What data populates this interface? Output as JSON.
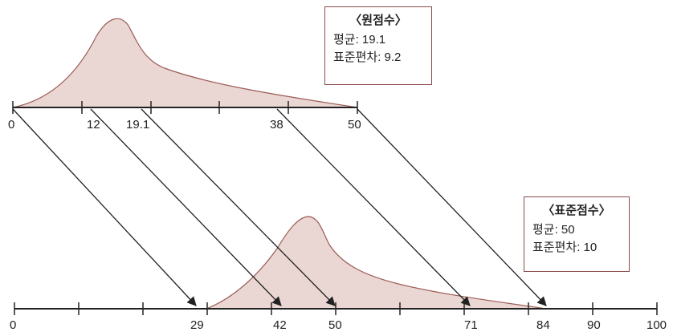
{
  "raw_box": {
    "title": "〈원점수〉",
    "mean_label": "평균: 19.1",
    "sd_label": "표준편차: 9.2"
  },
  "std_box": {
    "title": "〈표준점수〉",
    "mean_label": "평균: 50",
    "sd_label": "표준편차: 10"
  },
  "top_axis": {
    "labels": [
      "0",
      "12",
      "19.1",
      "38",
      "50"
    ]
  },
  "bottom_axis": {
    "labels": [
      "0",
      "29",
      "42",
      "50",
      "71",
      "84",
      "90",
      "100"
    ]
  },
  "colors": {
    "curve_fill": "#ead7d3",
    "curve_stroke": "#9c5a55",
    "axis": "#222222",
    "arrow": "#222222",
    "box_border": "#8a4a4a"
  },
  "mappings": [
    {
      "raw": "0",
      "standard": "29"
    },
    {
      "raw": "12",
      "standard": "42"
    },
    {
      "raw": "19.1",
      "standard": "50"
    },
    {
      "raw": "38",
      "standard": "71"
    },
    {
      "raw": "50",
      "standard": "84"
    }
  ]
}
